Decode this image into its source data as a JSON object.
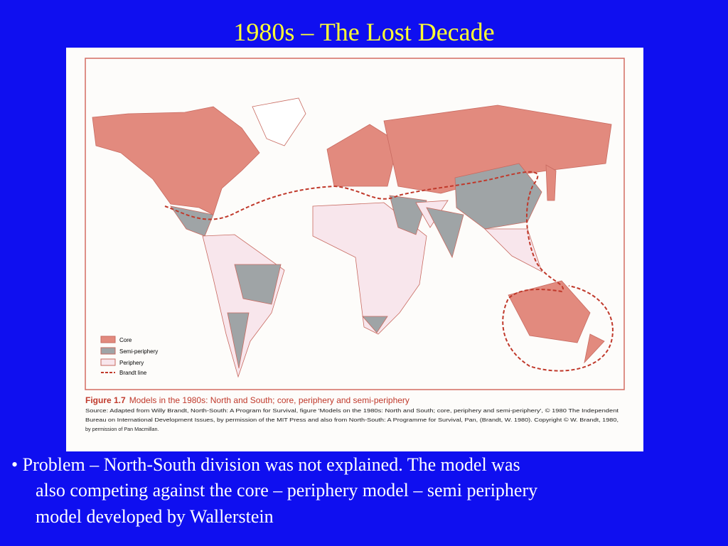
{
  "title": "1980s – The Lost Decade",
  "figure": {
    "legend": [
      "Core",
      "Semi-periphery",
      "Periphery",
      "Brandt line"
    ],
    "caption_label": "Figure 1.7",
    "caption_text": "Models in the 1980s: North and South; core, periphery and semi-periphery",
    "source": [
      "Source: Adapted from Willy Brandt, North-South: A Program for Survival, figure 'Models on the 1980s: North and South; core, periphery and semi-periphery', © 1980 The Independent",
      "Bureau on International Development Issues, by permission of the MIT Press and also from North-South: A Programme for Survival, Pan, (Brandt, W. 1980). Copyright © W. Brandt, 1980,",
      "by permission of Pan Macmillan."
    ]
  },
  "bullets": [
    "• Problem – North-South division was not explained.  The model was",
    "also competing against the core – periphery model – semi periphery",
    "model developed by Wallerstein"
  ]
}
